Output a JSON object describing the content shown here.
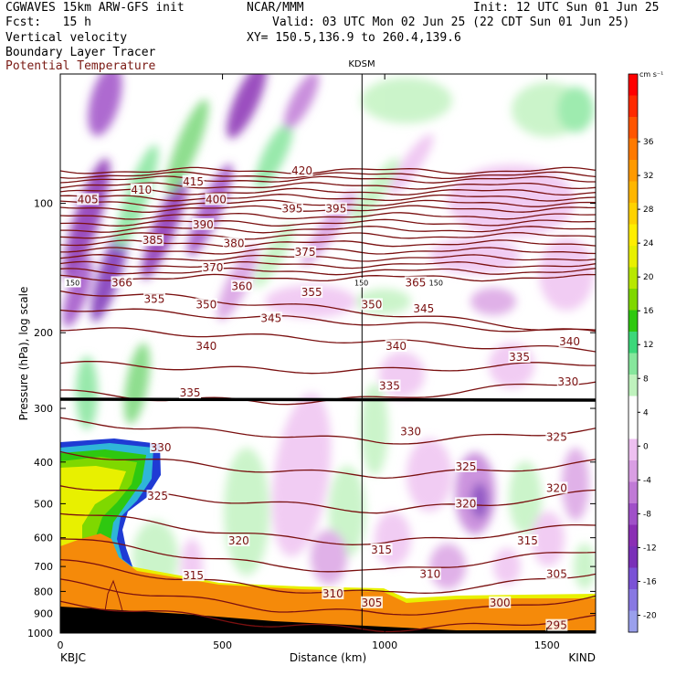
{
  "header": {
    "line1_left": "CGWAVES 15km ARW-GFS init",
    "org": "NCAR/MMM",
    "init": "Init: 12 UTC Sun 01 Jun 25",
    "fcst": "Fcst:   15 h",
    "valid": "Valid: 03 UTC Mon 02 Jun 25 (22 CDT Sun 01 Jun 25)",
    "field1": "Vertical velocity",
    "xy": "XY= 150.5,136.9 to 260.4,139.6",
    "field2": "Boundary Layer Tracer",
    "field3": "Potential Temperature"
  },
  "station_top": "KDSM",
  "station_left": "KBJC",
  "station_right": "KIND",
  "colors": {
    "theta": "#7a1010",
    "tropopause": "#000000",
    "terrain": "#f58a0a",
    "purple_dark": "#6a1a8a",
    "purple_light": "#e6b8ea",
    "green_light": "#b8f0b0",
    "green_mid": "#7ad87a"
  },
  "chart_data": {
    "type": "cross-section",
    "xlabel": "Distance (km)",
    "ylabel": "Pressure (hPa), log scale",
    "xlim": [
      0,
      1650
    ],
    "ylim": [
      1000,
      50
    ],
    "x_ticks": [
      "0",
      "500",
      "1000",
      "1500"
    ],
    "x_tick_values": [
      0,
      500,
      1000,
      1500
    ],
    "y_ticks": [
      "100",
      "200",
      "300",
      "400",
      "500",
      "600",
      "700",
      "800",
      "900",
      "1000"
    ],
    "y_tick_values": [
      100,
      200,
      300,
      400,
      500,
      600,
      700,
      800,
      900,
      1000
    ],
    "station_marker_km": 930,
    "colorbar": {
      "unit": "cm s⁻¹",
      "labels": [
        "36",
        "32",
        "28",
        "24",
        "20",
        "16",
        "12",
        "8",
        "4",
        "0",
        "-4",
        "-8",
        "-12",
        "-16",
        "-20"
      ],
      "label_values": [
        36,
        32,
        28,
        24,
        20,
        16,
        12,
        8,
        4,
        0,
        -4,
        -8,
        -12,
        -16,
        -20
      ],
      "colors": [
        "#ff0000",
        "#ff2a00",
        "#ff5500",
        "#ff7a00",
        "#ff9a00",
        "#ffb600",
        "#ffd200",
        "#ffee00",
        "#e8f000",
        "#b8e800",
        "#7fd800",
        "#2ec810",
        "#3cd77a",
        "#86e69c",
        "#bff2bd",
        "#ffffff",
        "#ffffff",
        "#eec0f0",
        "#d99ee3",
        "#c07ad6",
        "#a050c8",
        "#8a2eb4",
        "#7a30b8",
        "#7a52d6",
        "#8878e2",
        "#9aa0ec"
      ]
    },
    "theta_labels": [
      {
        "text": "420",
        "x": 745,
        "p": 84
      },
      {
        "text": "415",
        "x": 410,
        "p": 89
      },
      {
        "text": "410",
        "x": 250,
        "p": 93
      },
      {
        "text": "405",
        "x": 85,
        "p": 98
      },
      {
        "text": "400",
        "x": 480,
        "p": 98
      },
      {
        "text": "395",
        "x": 715,
        "p": 103
      },
      {
        "text": "395",
        "x": 850,
        "p": 103
      },
      {
        "text": "390",
        "x": 440,
        "p": 112
      },
      {
        "text": "385",
        "x": 285,
        "p": 122
      },
      {
        "text": "380",
        "x": 535,
        "p": 124
      },
      {
        "text": "375",
        "x": 755,
        "p": 130
      },
      {
        "text": "370",
        "x": 470,
        "p": 141
      },
      {
        "text": "366",
        "x": 190,
        "p": 153
      },
      {
        "text": "365",
        "x": 1095,
        "p": 153
      },
      {
        "text": "360",
        "x": 560,
        "p": 156
      },
      {
        "text": "355",
        "x": 290,
        "p": 167
      },
      {
        "text": "355",
        "x": 775,
        "p": 161
      },
      {
        "text": "350",
        "x": 450,
        "p": 172
      },
      {
        "text": "350",
        "x": 960,
        "p": 172
      },
      {
        "text": "345",
        "x": 650,
        "p": 185
      },
      {
        "text": "345",
        "x": 1120,
        "p": 176
      },
      {
        "text": "340",
        "x": 450,
        "p": 215
      },
      {
        "text": "340",
        "x": 1035,
        "p": 215
      },
      {
        "text": "340",
        "x": 1570,
        "p": 210
      },
      {
        "text": "335",
        "x": 400,
        "p": 276
      },
      {
        "text": "335",
        "x": 1015,
        "p": 266
      },
      {
        "text": "335",
        "x": 1415,
        "p": 228
      },
      {
        "text": "330",
        "x": 1565,
        "p": 260
      },
      {
        "text": "330",
        "x": 310,
        "p": 370
      },
      {
        "text": "330",
        "x": 1080,
        "p": 340
      },
      {
        "text": "325",
        "x": 1530,
        "p": 350
      },
      {
        "text": "325",
        "x": 1250,
        "p": 410
      },
      {
        "text": "325",
        "x": 300,
        "p": 480
      },
      {
        "text": "320",
        "x": 1530,
        "p": 460
      },
      {
        "text": "320",
        "x": 1250,
        "p": 500
      },
      {
        "text": "320",
        "x": 550,
        "p": 610
      },
      {
        "text": "315",
        "x": 1440,
        "p": 610
      },
      {
        "text": "315",
        "x": 990,
        "p": 640
      },
      {
        "text": "315",
        "x": 410,
        "p": 735
      },
      {
        "text": "310",
        "x": 1140,
        "p": 730
      },
      {
        "text": "310",
        "x": 840,
        "p": 810
      },
      {
        "text": "305",
        "x": 1530,
        "p": 730
      },
      {
        "text": "305",
        "x": 960,
        "p": 850
      },
      {
        "text": "300",
        "x": 1355,
        "p": 850
      },
      {
        "text": "295",
        "x": 1530,
        "p": 960
      }
    ],
    "tracer_labels": [
      {
        "text": "150",
        "x": 10,
        "p": 153
      },
      {
        "text": "150",
        "x": 900,
        "p": 153
      },
      {
        "text": "150",
        "x": 1130,
        "p": 153
      }
    ]
  }
}
